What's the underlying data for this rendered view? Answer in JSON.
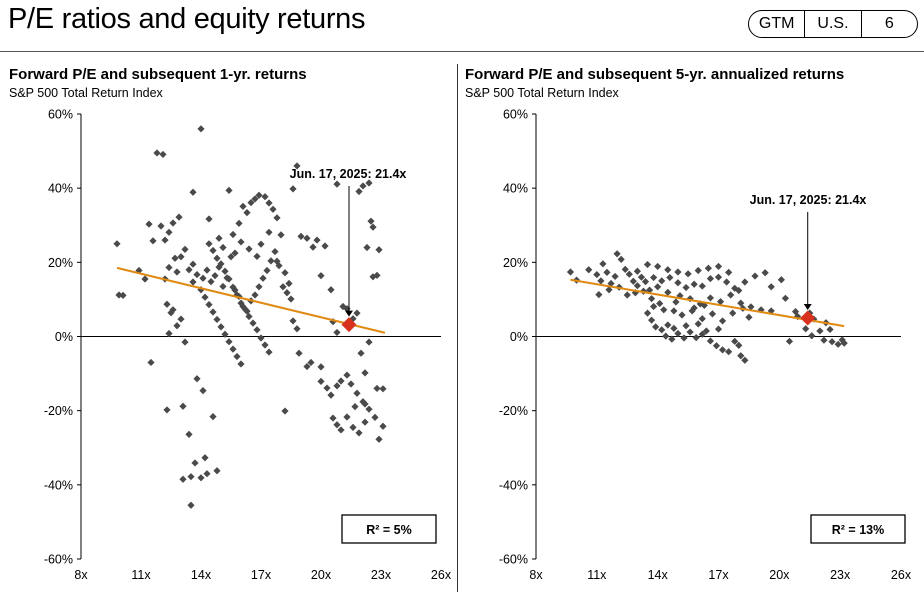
{
  "page": {
    "title": "P/E ratios and equity returns",
    "badge": [
      "GTM",
      "U.S.",
      "6"
    ]
  },
  "chart_data": [
    {
      "type": "scatter",
      "title": "Forward P/E and subsequent 1-yr. returns",
      "subtitle": "S&P 500 Total Return Index",
      "xlim": [
        8,
        26
      ],
      "ylim": [
        -60,
        60
      ],
      "xticks": [
        8,
        11,
        14,
        17,
        20,
        23,
        26
      ],
      "xtick_labels": [
        "8x",
        "11x",
        "14x",
        "17x",
        "20x",
        "23x",
        "26x"
      ],
      "yticks": [
        60,
        40,
        20,
        0,
        -20,
        -40,
        -60
      ],
      "ytick_labels": [
        "60%",
        "40%",
        "20%",
        "0%",
        "-20%",
        "-40%",
        "-60%"
      ],
      "grid": false,
      "colors": {
        "points": "#4a4a4a",
        "trend": "#e08a12",
        "highlight": "#d8321e"
      },
      "trendline": {
        "x": [
          9.8,
          23.2
        ],
        "y": [
          18.5,
          1.0
        ]
      },
      "highlight": {
        "x": 21.4,
        "y": 3.2,
        "label": "Jun. 17, 2025:  21.4x"
      },
      "r2_label": "R²  = 5%",
      "points": [
        [
          9.8,
          25
        ],
        [
          9.9,
          11.2
        ],
        [
          10.9,
          17.8
        ],
        [
          11.2,
          15.5
        ],
        [
          10.1,
          11.1
        ],
        [
          11.5,
          -7
        ],
        [
          12.2,
          15.5
        ],
        [
          12.4,
          18.6
        ],
        [
          11.6,
          25.8
        ],
        [
          11.4,
          30.3
        ],
        [
          12.0,
          29.8
        ],
        [
          12.2,
          26.0
        ],
        [
          11.8,
          49.5
        ],
        [
          12.1,
          49.1
        ],
        [
          12.4,
          28.1
        ],
        [
          12.6,
          30.6
        ],
        [
          12.9,
          32.2
        ],
        [
          12.7,
          21.1
        ],
        [
          12.8,
          17.4
        ],
        [
          12.5,
          6.4
        ],
        [
          12.3,
          8.7
        ],
        [
          12.6,
          7.2
        ],
        [
          12.4,
          0.8
        ],
        [
          12.8,
          2.9
        ],
        [
          13.0,
          4.7
        ],
        [
          13.2,
          -1.5
        ],
        [
          12.3,
          -19.8
        ],
        [
          13.1,
          -18.8
        ],
        [
          13.4,
          -26.4
        ],
        [
          13.1,
          -38.5
        ],
        [
          13.5,
          -37.8
        ],
        [
          13.7,
          -34.1
        ],
        [
          13.5,
          -45.5
        ],
        [
          14.2,
          -32.7
        ],
        [
          14.3,
          -37.0
        ],
        [
          14.0,
          -38.1
        ],
        [
          14.8,
          -36.2
        ],
        [
          14.6,
          -21.6
        ],
        [
          13.8,
          -11.4
        ],
        [
          14.1,
          -14.6
        ],
        [
          13.6,
          19.5
        ],
        [
          14.0,
          56.0
        ],
        [
          13.6,
          38.9
        ],
        [
          14.4,
          31.7
        ],
        [
          13.0,
          21.5
        ],
        [
          13.2,
          23.5
        ],
        [
          13.4,
          18.0
        ],
        [
          13.6,
          14.7
        ],
        [
          13.8,
          16.7
        ],
        [
          14.0,
          12.6
        ],
        [
          14.2,
          10.6
        ],
        [
          14.4,
          8.6
        ],
        [
          14.6,
          6.6
        ],
        [
          14.8,
          4.6
        ],
        [
          15.0,
          2.6
        ],
        [
          15.2,
          0.6
        ],
        [
          15.4,
          -1.4
        ],
        [
          15.6,
          -3.4
        ],
        [
          15.8,
          -5.4
        ],
        [
          16.0,
          -7.4
        ],
        [
          14.1,
          15.7
        ],
        [
          14.3,
          17.9
        ],
        [
          14.5,
          14.8
        ],
        [
          14.7,
          16.4
        ],
        [
          14.9,
          18.7
        ],
        [
          15.1,
          13.5
        ],
        [
          15.3,
          15.8
        ],
        [
          15.5,
          21.5
        ],
        [
          15.7,
          12.5
        ],
        [
          15.9,
          10.8
        ],
        [
          16.1,
          8.1
        ],
        [
          16.3,
          6.8
        ],
        [
          16.5,
          9.6
        ],
        [
          16.7,
          11.2
        ],
        [
          16.9,
          13.4
        ],
        [
          17.1,
          15.7
        ],
        [
          17.3,
          17.8
        ],
        [
          17.5,
          20.4
        ],
        [
          17.7,
          22.9
        ],
        [
          17.9,
          19.1
        ],
        [
          18.1,
          13.4
        ],
        [
          18.3,
          11.8
        ],
        [
          18.5,
          10.1
        ],
        [
          14.4,
          25.0
        ],
        [
          14.6,
          23.2
        ],
        [
          14.8,
          21.1
        ],
        [
          15.0,
          19.6
        ],
        [
          15.2,
          17.6
        ],
        [
          15.4,
          15.5
        ],
        [
          15.6,
          13.3
        ],
        [
          15.8,
          11.2
        ],
        [
          16.0,
          9.0
        ],
        [
          16.2,
          7.4
        ],
        [
          16.4,
          5.4
        ],
        [
          16.6,
          3.6
        ],
        [
          16.8,
          1.8
        ],
        [
          17.0,
          -0.4
        ],
        [
          17.2,
          -2.3
        ],
        [
          17.4,
          -4.2
        ],
        [
          14.9,
          26.5
        ],
        [
          15.1,
          24.0
        ],
        [
          15.4,
          39.4
        ],
        [
          15.6,
          27.5
        ],
        [
          15.9,
          30.5
        ],
        [
          16.1,
          35.1
        ],
        [
          16.3,
          33.4
        ],
        [
          16.5,
          36.1
        ],
        [
          16.7,
          37.1
        ],
        [
          16.9,
          38.1
        ],
        [
          17.2,
          37.7
        ],
        [
          17.4,
          36.0
        ],
        [
          17.6,
          34.3
        ],
        [
          17.8,
          32.0
        ],
        [
          18.0,
          27.4
        ],
        [
          15.7,
          22.5
        ],
        [
          16.0,
          25.5
        ],
        [
          16.4,
          23.6
        ],
        [
          16.8,
          21.6
        ],
        [
          17.0,
          24.9
        ],
        [
          17.4,
          28.1
        ],
        [
          17.8,
          20.3
        ],
        [
          18.2,
          17.2
        ],
        [
          18.4,
          14.3
        ],
        [
          18.6,
          4.2
        ],
        [
          18.8,
          2.1
        ],
        [
          18.2,
          -20.1
        ],
        [
          18.8,
          46.0
        ],
        [
          18.6,
          39.8
        ],
        [
          19.0,
          27.0
        ],
        [
          19.3,
          26.5
        ],
        [
          19.6,
          24.1
        ],
        [
          19.8,
          26.0
        ],
        [
          20.2,
          24.4
        ],
        [
          20.0,
          16.4
        ],
        [
          20.5,
          12.6
        ],
        [
          20.0,
          -8.2
        ],
        [
          19.5,
          -7.0
        ],
        [
          19.3,
          -8.1
        ],
        [
          18.9,
          -4.5
        ],
        [
          20.0,
          -12.1
        ],
        [
          20.3,
          -13.9
        ],
        [
          20.5,
          -15.8
        ],
        [
          20.8,
          -13.3
        ],
        [
          21.0,
          -12.0
        ],
        [
          21.3,
          -10.4
        ],
        [
          21.5,
          -12.8
        ],
        [
          21.8,
          -15.3
        ],
        [
          22.1,
          -17.6
        ],
        [
          22.4,
          -19.6
        ],
        [
          22.7,
          -21.8
        ],
        [
          20.6,
          -22.0
        ],
        [
          20.8,
          -23.8
        ],
        [
          21.0,
          -25.2
        ],
        [
          21.3,
          -21.7
        ],
        [
          21.6,
          -24.5
        ],
        [
          21.9,
          -26.0
        ],
        [
          22.2,
          -23.1
        ],
        [
          22.8,
          -14.0
        ],
        [
          23.1,
          -14.1
        ],
        [
          22.9,
          -27.7
        ],
        [
          23.1,
          -24.2
        ],
        [
          20.8,
          41.1
        ],
        [
          22.4,
          41.4
        ],
        [
          22.1,
          40.6
        ],
        [
          21.9,
          39.1
        ],
        [
          22.5,
          31.1
        ],
        [
          22.6,
          29.5
        ],
        [
          22.3,
          24.0
        ],
        [
          22.0,
          -4.5
        ],
        [
          22.2,
          -9.8
        ],
        [
          22.4,
          -1.5
        ],
        [
          22.6,
          16.1
        ],
        [
          22.9,
          23.4
        ],
        [
          22.8,
          16.5
        ],
        [
          22.2,
          -18.2
        ],
        [
          21.7,
          -18.9
        ],
        [
          21.6,
          4.8
        ],
        [
          21.8,
          6.3
        ],
        [
          21.3,
          7.5
        ],
        [
          21.1,
          8.1
        ],
        [
          20.8,
          1.1
        ],
        [
          20.6,
          4.0
        ]
      ]
    },
    {
      "type": "scatter",
      "title": "Forward P/E and subsequent 5-yr. annualized returns",
      "subtitle": "S&P 500 Total Return Index",
      "xlim": [
        8,
        26
      ],
      "ylim": [
        -60,
        60
      ],
      "xticks": [
        8,
        11,
        14,
        17,
        20,
        23,
        26
      ],
      "xtick_labels": [
        "8x",
        "11x",
        "14x",
        "17x",
        "20x",
        "23x",
        "26x"
      ],
      "yticks": [
        60,
        40,
        20,
        0,
        -20,
        -40,
        -60
      ],
      "ytick_labels": [
        "60%",
        "40%",
        "20%",
        "0%",
        "-20%",
        "-40%",
        "-60%"
      ],
      "grid": false,
      "colors": {
        "points": "#4a4a4a",
        "trend": "#e08a12",
        "highlight": "#d8321e"
      },
      "trendline": {
        "x": [
          9.7,
          23.2
        ],
        "y": [
          15.3,
          2.8
        ]
      },
      "highlight": {
        "x": 21.4,
        "y": 5.0,
        "label": "Jun. 17, 2025:  21.4x"
      },
      "r2_label": "R²  = 13%",
      "points": [
        [
          9.7,
          17.4
        ],
        [
          10.0,
          15.2
        ],
        [
          10.6,
          18.0
        ],
        [
          11.0,
          16.7
        ],
        [
          11.2,
          15.0
        ],
        [
          11.3,
          19.6
        ],
        [
          11.5,
          17.3
        ],
        [
          11.7,
          14.3
        ],
        [
          11.9,
          16.2
        ],
        [
          12.0,
          22.3
        ],
        [
          12.2,
          20.8
        ],
        [
          12.4,
          18.1
        ],
        [
          12.6,
          16.8
        ],
        [
          12.8,
          14.9
        ],
        [
          13.0,
          13.7
        ],
        [
          13.2,
          16.0
        ],
        [
          13.4,
          14.8
        ],
        [
          13.6,
          12.5
        ],
        [
          13.8,
          15.9
        ],
        [
          14.0,
          13.4
        ],
        [
          11.1,
          11.3
        ],
        [
          11.6,
          12.6
        ],
        [
          12.1,
          13.3
        ],
        [
          12.5,
          11.2
        ],
        [
          12.9,
          11.8
        ],
        [
          13.3,
          12.2
        ],
        [
          13.7,
          10.2
        ],
        [
          14.1,
          8.9
        ],
        [
          14.5,
          11.9
        ],
        [
          14.9,
          9.3
        ],
        [
          13.0,
          17.6
        ],
        [
          13.5,
          19.4
        ],
        [
          14.0,
          18.9
        ],
        [
          14.5,
          18.0
        ],
        [
          15.0,
          17.4
        ],
        [
          15.5,
          16.9
        ],
        [
          16.0,
          17.8
        ],
        [
          16.5,
          18.4
        ],
        [
          17.0,
          18.9
        ],
        [
          17.5,
          17.3
        ],
        [
          14.2,
          15.0
        ],
        [
          14.6,
          15.9
        ],
        [
          15.0,
          14.5
        ],
        [
          15.4,
          13.2
        ],
        [
          15.8,
          14.1
        ],
        [
          16.2,
          13.6
        ],
        [
          16.6,
          15.6
        ],
        [
          17.0,
          16.0
        ],
        [
          17.4,
          14.7
        ],
        [
          17.8,
          13.0
        ],
        [
          15.1,
          11.0
        ],
        [
          15.6,
          10.2
        ],
        [
          16.1,
          8.8
        ],
        [
          16.6,
          10.4
        ],
        [
          17.1,
          9.4
        ],
        [
          17.6,
          11.2
        ],
        [
          18.1,
          9.0
        ],
        [
          18.6,
          8.0
        ],
        [
          19.1,
          7.2
        ],
        [
          19.6,
          6.9
        ],
        [
          15.2,
          5.8
        ],
        [
          15.7,
          6.9
        ],
        [
          16.2,
          4.8
        ],
        [
          16.7,
          6.1
        ],
        [
          17.2,
          4.2
        ],
        [
          17.7,
          6.3
        ],
        [
          18.2,
          7.6
        ],
        [
          18.5,
          5.2
        ],
        [
          18.0,
          12.4
        ],
        [
          18.3,
          14.7
        ],
        [
          18.8,
          16.3
        ],
        [
          19.3,
          17.2
        ],
        [
          19.6,
          13.4
        ],
        [
          20.1,
          15.3
        ],
        [
          20.3,
          10.3
        ],
        [
          20.8,
          6.7
        ],
        [
          21.3,
          2.1
        ],
        [
          21.7,
          4.7
        ],
        [
          22.0,
          1.5
        ],
        [
          21.6,
          0.2
        ],
        [
          20.5,
          -1.3
        ],
        [
          22.2,
          -1.0
        ],
        [
          22.6,
          -1.4
        ],
        [
          22.9,
          -2.1
        ],
        [
          23.1,
          -0.9
        ],
        [
          23.2,
          -1.8
        ],
        [
          22.5,
          1.9
        ],
        [
          22.3,
          3.7
        ],
        [
          21.5,
          6.3
        ],
        [
          20.9,
          5.4
        ],
        [
          13.5,
          6.3
        ],
        [
          13.7,
          4.4
        ],
        [
          13.9,
          2.6
        ],
        [
          14.2,
          1.8
        ],
        [
          14.4,
          0.1
        ],
        [
          14.7,
          -0.7
        ],
        [
          15.0,
          0.8
        ],
        [
          15.3,
          -0.4
        ],
        [
          15.6,
          1.2
        ],
        [
          15.9,
          -0.3
        ],
        [
          16.2,
          0.6
        ],
        [
          16.6,
          -1.2
        ],
        [
          16.9,
          -2.5
        ],
        [
          17.2,
          -3.6
        ],
        [
          17.5,
          -4.1
        ],
        [
          17.8,
          -1.3
        ],
        [
          18.1,
          -5.2
        ],
        [
          18.3,
          -6.4
        ],
        [
          18.0,
          -2.4
        ],
        [
          16.4,
          1.5
        ],
        [
          14.5,
          3.1
        ],
        [
          14.8,
          2.2
        ],
        [
          15.4,
          2.9
        ],
        [
          17.0,
          2.0
        ],
        [
          16.0,
          3.4
        ],
        [
          13.8,
          8.1
        ],
        [
          14.3,
          7.2
        ],
        [
          14.8,
          6.9
        ],
        [
          15.8,
          7.7
        ],
        [
          16.3,
          8.4
        ]
      ]
    }
  ]
}
